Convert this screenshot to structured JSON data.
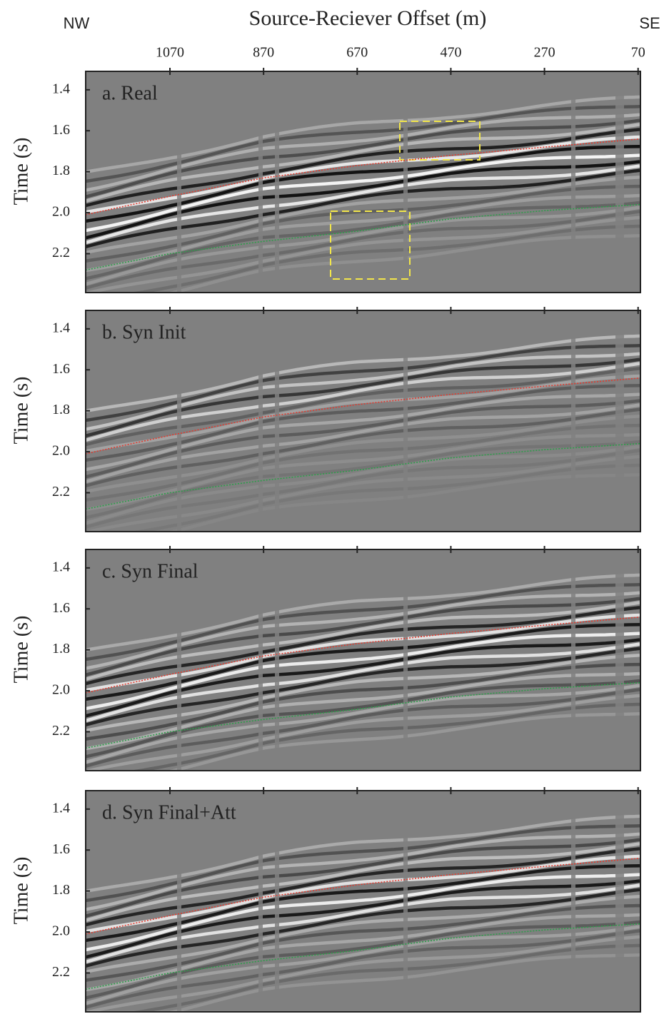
{
  "figure": {
    "x_label": "Source-Reciever Offset (m)",
    "left_label": "NW",
    "right_label": "SE"
  },
  "chart_data": [
    {
      "type": "seismic",
      "title": "a. Real",
      "y_label": "Time (s)",
      "xlim": [
        1250,
        65
      ],
      "ylim": [
        1.31,
        2.39
      ],
      "xticks": [
        1070,
        870,
        670,
        470,
        270,
        70
      ],
      "yticks": [
        1.4,
        1.6,
        1.8,
        {
          "value": 2,
          "label": "2.0"
        },
        2.2
      ],
      "x": [
        1250,
        1070,
        870,
        670,
        470,
        270,
        65
      ],
      "series": [
        {
          "color": "#e03c31",
          "values": [
            2.01,
            1.92,
            1.83,
            1.77,
            1.72,
            1.68,
            1.64
          ]
        },
        {
          "color": "#2e9e4a",
          "values": [
            2.28,
            2.2,
            2.14,
            2.09,
            2.03,
            1.99,
            1.96
          ]
        }
      ]
    },
    {
      "type": "seismic",
      "title": "b. Syn Init",
      "y_label": "Time (s)",
      "xlim": [
        1250,
        65
      ],
      "ylim": [
        1.31,
        2.39
      ],
      "xticks": [
        1070,
        870,
        670,
        470,
        270,
        70
      ],
      "yticks": [
        1.4,
        1.6,
        1.8,
        {
          "value": 2,
          "label": "2.0"
        },
        2.2
      ],
      "x": [
        1250,
        1070,
        870,
        670,
        470,
        270,
        65
      ],
      "series": [
        {
          "color": "#e03c31",
          "values": [
            2.01,
            1.92,
            1.83,
            1.77,
            1.72,
            1.68,
            1.64
          ]
        },
        {
          "color": "#2e9e4a",
          "values": [
            2.28,
            2.2,
            2.14,
            2.09,
            2.03,
            1.99,
            1.96
          ]
        }
      ]
    },
    {
      "type": "seismic",
      "title": "c. Syn Final",
      "y_label": "Time (s)",
      "xlim": [
        1250,
        65
      ],
      "ylim": [
        1.31,
        2.39
      ],
      "xticks": [
        1070,
        870,
        670,
        470,
        270,
        70
      ],
      "yticks": [
        1.4,
        1.6,
        1.8,
        {
          "value": 2,
          "label": "2.0"
        },
        2.2
      ],
      "x": [
        1250,
        1070,
        870,
        670,
        470,
        270,
        65
      ],
      "series": [
        {
          "color": "#e03c31",
          "values": [
            2.01,
            1.92,
            1.83,
            1.77,
            1.72,
            1.68,
            1.64
          ]
        },
        {
          "color": "#2e9e4a",
          "values": [
            2.28,
            2.2,
            2.14,
            2.09,
            2.03,
            1.99,
            1.96
          ]
        }
      ]
    },
    {
      "type": "seismic",
      "title": "d. Syn Final+Att",
      "y_label": "Time (s)",
      "xlim": [
        1250,
        65
      ],
      "ylim": [
        1.31,
        2.39
      ],
      "xticks": [
        1070,
        870,
        670,
        470,
        270,
        70
      ],
      "yticks": [
        1.4,
        1.6,
        1.8,
        {
          "value": 2,
          "label": "2.0"
        },
        2.2
      ],
      "x": [
        1250,
        1070,
        870,
        670,
        470,
        270,
        65
      ],
      "series": [
        {
          "color": "#e03c31",
          "values": [
            2.01,
            1.92,
            1.83,
            1.77,
            1.72,
            1.68,
            1.64
          ]
        },
        {
          "color": "#2e9e4a",
          "values": [
            2.28,
            2.2,
            2.14,
            2.09,
            2.03,
            1.99,
            1.96
          ]
        }
      ]
    }
  ]
}
